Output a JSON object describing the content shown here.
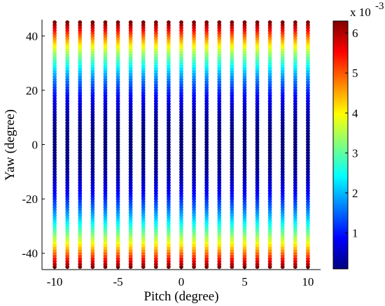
{
  "chart_data": {
    "type": "scatter",
    "title": "",
    "xlabel": "Pitch (degree)",
    "ylabel": "Yaw (degree)",
    "xlim": [
      -11,
      11
    ],
    "ylim": [
      -46,
      46
    ],
    "xticks": [
      -10,
      -5,
      0,
      5,
      10
    ],
    "yticks": [
      -40,
      -20,
      0,
      20,
      40
    ],
    "pitch_values": [
      -10,
      -9,
      -8,
      -7,
      -6,
      -5,
      -4,
      -3,
      -2,
      -1,
      0,
      1,
      2,
      3,
      4,
      5,
      6,
      7,
      8,
      9,
      10
    ],
    "yaw_range": [
      -45,
      45
    ],
    "yaw_step": 1,
    "color_model": "error increases with |yaw|; min ~0.0001 at yaw 0, max ~0.0063 at |yaw| 45",
    "colorbar": {
      "colormap": "jet",
      "range": [
        0.0001,
        0.0063
      ],
      "ticks": [
        1,
        2,
        3,
        4,
        5,
        6
      ],
      "tick_labels": [
        "1",
        "2",
        "3",
        "4",
        "5",
        "6"
      ],
      "multiplier_base": "x 10",
      "multiplier_exp": "-3"
    },
    "grid": false
  }
}
